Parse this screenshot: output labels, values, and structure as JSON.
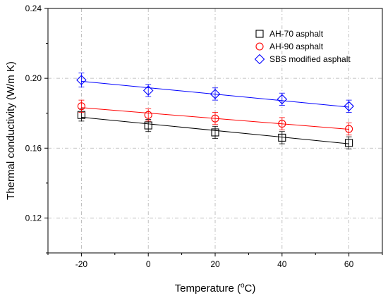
{
  "chart_data": {
    "type": "scatter",
    "xlabel_main": "Temperature (",
    "xlabel_sup": "o",
    "xlabel_end": "C)",
    "ylabel": "Thermal conductivity (W/m K)",
    "xlim": [
      -30,
      70
    ],
    "ylim": [
      0.1,
      0.24
    ],
    "xticks": [
      -20,
      0,
      20,
      40,
      60
    ],
    "yticks": [
      0.12,
      0.16,
      0.2,
      0.24
    ],
    "ytick_labels": [
      "0.12",
      "0.16",
      "0.20",
      "0.24"
    ],
    "grid": true,
    "legend_position": "top-right",
    "x": [
      -20,
      0,
      20,
      40,
      60
    ],
    "series": [
      {
        "name": "AH-70 asphalt",
        "marker": "square",
        "color": "#000000",
        "values": [
          0.179,
          0.173,
          0.169,
          0.166,
          0.163
        ],
        "error": [
          0.0035,
          0.0035,
          0.0035,
          0.0035,
          0.0035
        ],
        "fit": [
          0.1777,
          0.1739,
          0.1701,
          0.1663,
          0.1625
        ]
      },
      {
        "name": "AH-90 asphalt",
        "marker": "circle",
        "color": "#ff0000",
        "values": [
          0.184,
          0.179,
          0.177,
          0.174,
          0.171
        ],
        "error": [
          0.0035,
          0.0035,
          0.0035,
          0.0035,
          0.0035
        ],
        "fit": [
          0.1832,
          0.1801,
          0.177,
          0.1739,
          0.1708
        ]
      },
      {
        "name": "SBS modified asphalt",
        "marker": "diamond",
        "color": "#0000ff",
        "values": [
          0.199,
          0.193,
          0.191,
          0.188,
          0.184
        ],
        "error": [
          0.004,
          0.0035,
          0.0035,
          0.0035,
          0.0035
        ],
        "fit": [
          0.1983,
          0.1946,
          0.1909,
          0.1872,
          0.1835
        ]
      }
    ]
  }
}
